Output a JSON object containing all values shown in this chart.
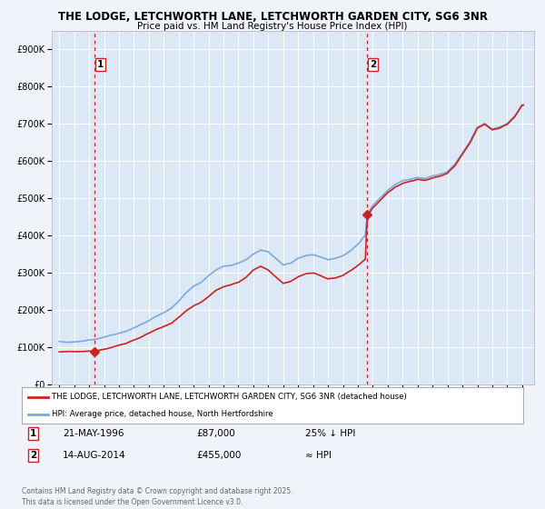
{
  "title_line1": "THE LODGE, LETCHWORTH LANE, LETCHWORTH GARDEN CITY, SG6 3NR",
  "title_line2": "Price paid vs. HM Land Registry's House Price Index (HPI)",
  "legend_label1": "THE LODGE, LETCHWORTH LANE, LETCHWORTH GARDEN CITY, SG6 3NR (detached house)",
  "legend_label2": "HPI: Average price, detached house, North Hertfordshire",
  "annotation1_date": "21-MAY-1996",
  "annotation1_price": "£87,000",
  "annotation1_hpi": "25% ↓ HPI",
  "annotation2_date": "14-AUG-2014",
  "annotation2_price": "£455,000",
  "annotation2_hpi": "≈ HPI",
  "footer": "Contains HM Land Registry data © Crown copyright and database right 2025.\nThis data is licensed under the Open Government Licence v3.0.",
  "hpi_color": "#7aaadd",
  "price_color": "#cc2222",
  "marker_color": "#cc2222",
  "vline_color": "#cc2222",
  "sale1_year": 1996.38,
  "sale1_price": 87000,
  "sale2_year": 2014.62,
  "sale2_price": 455000,
  "ylim": [
    0,
    950000
  ],
  "yticks": [
    0,
    100000,
    200000,
    300000,
    400000,
    500000,
    600000,
    700000,
    800000,
    900000
  ],
  "background_color": "#f0f4fa",
  "plot_bg_color": "#dce8f5",
  "grid_color": "#ffffff"
}
